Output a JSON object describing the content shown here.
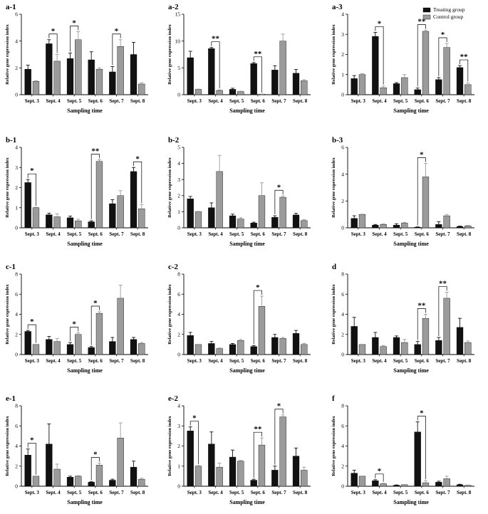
{
  "chart_data": [
    {
      "type": "bar",
      "title": "a-1",
      "ylim": [
        0,
        6
      ],
      "yticks": [
        0,
        2,
        4,
        6
      ],
      "categories": [
        "Sept. 3",
        "Sept. 4",
        "Sept. 5",
        "Sept. 6",
        "Sept. 7",
        "Sept. 8"
      ],
      "xlabel": "Sampling time",
      "ylabel": "Relative gene expression index",
      "series": [
        {
          "name": "Treating group",
          "values": [
            1.9,
            3.8,
            2.7,
            2.6,
            1.7,
            3.0
          ],
          "errors": [
            0.3,
            0.3,
            0.4,
            0.6,
            0.4,
            0.9
          ]
        },
        {
          "name": "Control group",
          "values": [
            1.0,
            2.5,
            4.1,
            1.9,
            3.6,
            0.8
          ],
          "errors": [
            0.05,
            0.5,
            0.6,
            0.1,
            0.5,
            0.1
          ]
        }
      ],
      "significance": [
        {
          "category": "Sept. 4",
          "label": "*"
        },
        {
          "category": "Sept. 5",
          "label": "*"
        },
        {
          "category": "Sept. 7",
          "label": "*"
        }
      ]
    },
    {
      "type": "bar",
      "title": "a-2",
      "ylim": [
        0,
        15
      ],
      "yticks": [
        0,
        5,
        10,
        15
      ],
      "categories": [
        "Sept. 3",
        "Sept. 4",
        "Sept. 5",
        "Sept. 6",
        "Sept. 7",
        "Sept. 8"
      ],
      "xlabel": "Sampling time",
      "ylabel": "Relative gene expression index",
      "series": [
        {
          "name": "Treating group",
          "values": [
            6.9,
            8.6,
            1.0,
            5.8,
            4.6,
            4.0
          ],
          "errors": [
            1.2,
            0.2,
            0.2,
            0.2,
            0.8,
            0.7
          ]
        },
        {
          "name": "Control group",
          "values": [
            1.0,
            0.8,
            0.6,
            0.1,
            10.0,
            2.6
          ],
          "errors": [
            0.05,
            0.1,
            0.05,
            0.02,
            1.3,
            0.2
          ]
        }
      ],
      "significance": [
        {
          "category": "Sept. 4",
          "label": "**"
        },
        {
          "category": "Sept. 6",
          "label": "**"
        }
      ]
    },
    {
      "type": "bar",
      "title": "a-3",
      "ylim": [
        0,
        4
      ],
      "yticks": [
        0,
        1,
        2,
        3,
        4
      ],
      "categories": [
        "Sept. 3",
        "Sept. 4",
        "Sept. 5",
        "Sept. 6",
        "Sept. 7",
        "Sept. 8"
      ],
      "xlabel": "Sampling time",
      "ylabel": "Relative gene expression index",
      "legend": {
        "position": "top-right",
        "entries": [
          "Treating group",
          "Control group"
        ]
      },
      "series": [
        {
          "name": "Treating group",
          "values": [
            0.8,
            2.9,
            0.55,
            0.25,
            0.75,
            1.35
          ],
          "errors": [
            0.15,
            0.2,
            0.05,
            0.08,
            0.1,
            0.1
          ]
        },
        {
          "name": "Control group",
          "values": [
            1.0,
            0.35,
            0.85,
            3.15,
            2.35,
            0.5
          ],
          "errors": [
            0.05,
            0.08,
            0.15,
            0.05,
            0.2,
            0.08
          ]
        }
      ],
      "significance": [
        {
          "category": "Sept. 4",
          "label": "*"
        },
        {
          "category": "Sept. 6",
          "label": "**"
        },
        {
          "category": "Sept. 7",
          "label": "*"
        },
        {
          "category": "Sept. 8",
          "label": "**"
        }
      ]
    },
    {
      "type": "bar",
      "title": "b-1",
      "ylim": [
        0,
        4
      ],
      "yticks": [
        0,
        1,
        2,
        3,
        4
      ],
      "categories": [
        "Sept. 3",
        "Sept. 4",
        "Sept. 5",
        "Sept. 6",
        "Sept. 7",
        "Sept. 8"
      ],
      "xlabel": "Sampling time",
      "ylabel": "Relative gene expression index",
      "series": [
        {
          "name": "Treating group",
          "values": [
            2.25,
            0.65,
            0.5,
            0.3,
            1.2,
            2.8
          ],
          "errors": [
            0.15,
            0.08,
            0.08,
            0.05,
            0.2,
            0.2
          ]
        },
        {
          "name": "Control group",
          "values": [
            1.0,
            0.55,
            0.35,
            3.3,
            1.6,
            0.95
          ],
          "errors": [
            0.02,
            0.15,
            0.08,
            0.08,
            0.25,
            0.2
          ]
        }
      ],
      "significance": [
        {
          "category": "Sept. 3",
          "label": "*"
        },
        {
          "category": "Sept. 6",
          "label": "**"
        },
        {
          "category": "Sept. 8",
          "label": "*"
        }
      ]
    },
    {
      "type": "bar",
      "title": "b-2",
      "ylim": [
        0,
        5
      ],
      "yticks": [
        0,
        1,
        2,
        3,
        4,
        5
      ],
      "categories": [
        "Sept. 3",
        "Sept. 4",
        "Sept. 5",
        "Sept. 6",
        "Sept. 7",
        "Sept. 8"
      ],
      "xlabel": "Sampling time",
      "ylabel": "Relative gene expression index",
      "series": [
        {
          "name": "Treating group",
          "values": [
            1.8,
            1.25,
            0.75,
            0.3,
            0.65,
            0.8
          ],
          "errors": [
            0.15,
            0.3,
            0.1,
            0.05,
            0.1,
            0.1
          ]
        },
        {
          "name": "Control group",
          "values": [
            1.0,
            3.5,
            0.55,
            2.0,
            1.9,
            0.45
          ],
          "errors": [
            0.02,
            1.0,
            0.08,
            0.8,
            0.08,
            0.05
          ]
        }
      ],
      "significance": [
        {
          "category": "Sept. 7",
          "label": "*"
        }
      ]
    },
    {
      "type": "bar",
      "title": "b-3",
      "ylim": [
        0,
        6
      ],
      "yticks": [
        0,
        2,
        4,
        6
      ],
      "categories": [
        "Sept. 3",
        "Sept. 4",
        "Sept. 5",
        "Sept. 6",
        "Sept. 7",
        "Sept. 8"
      ],
      "xlabel": "Sampling time",
      "ylabel": "Relative gene expression index",
      "series": [
        {
          "name": "Treating group",
          "values": [
            0.7,
            0.2,
            0.2,
            0.05,
            0.25,
            0.1
          ],
          "errors": [
            0.2,
            0.05,
            0.1,
            0.02,
            0.2,
            0.03
          ]
        },
        {
          "name": "Control group",
          "values": [
            1.0,
            0.25,
            0.35,
            3.8,
            0.9,
            0.15
          ],
          "errors": [
            0.02,
            0.05,
            0.05,
            1.0,
            0.1,
            0.03
          ]
        }
      ],
      "significance": [
        {
          "category": "Sept. 6",
          "label": "*"
        }
      ]
    },
    {
      "type": "bar",
      "title": "c-1",
      "ylim": [
        0,
        8
      ],
      "yticks": [
        0,
        2,
        4,
        6,
        8
      ],
      "categories": [
        "Sept. 3",
        "Sept. 4",
        "Sept. 5",
        "Sept. 6",
        "Sept. 7",
        "Sept. 8"
      ],
      "xlabel": "Sampling time",
      "ylabel": "Relative gene expression index",
      "series": [
        {
          "name": "Treating group",
          "values": [
            2.3,
            1.5,
            1.0,
            0.7,
            1.3,
            1.5
          ],
          "errors": [
            0.1,
            0.3,
            0.2,
            0.1,
            0.4,
            0.2
          ]
        },
        {
          "name": "Control group",
          "values": [
            1.0,
            1.3,
            2.0,
            4.1,
            5.6,
            1.1
          ],
          "errors": [
            0.02,
            0.3,
            0.15,
            0.15,
            1.3,
            0.1
          ]
        }
      ],
      "significance": [
        {
          "category": "Sept. 3",
          "label": "*"
        },
        {
          "category": "Sept. 5",
          "label": "*"
        },
        {
          "category": "Sept. 6",
          "label": "*"
        }
      ]
    },
    {
      "type": "bar",
      "title": "c-2",
      "ylim": [
        0,
        8
      ],
      "yticks": [
        0,
        2,
        4,
        6,
        8
      ],
      "categories": [
        "Sept. 3",
        "Sept. 4",
        "Sept. 5",
        "Sept. 6",
        "Sept. 7",
        "Sept. 8"
      ],
      "xlabel": "Sampling time",
      "ylabel": "Relative gene expression index",
      "series": [
        {
          "name": "Treating group",
          "values": [
            1.9,
            1.1,
            1.0,
            0.8,
            1.7,
            2.1
          ],
          "errors": [
            0.3,
            0.2,
            0.1,
            0.1,
            0.3,
            0.3
          ]
        },
        {
          "name": "Control group",
          "values": [
            1.0,
            0.6,
            1.4,
            4.8,
            1.6,
            1.0
          ],
          "errors": [
            0.02,
            0.05,
            0.1,
            1.0,
            0.1,
            0.1
          ]
        }
      ],
      "significance": [
        {
          "category": "Sept. 6",
          "label": "*"
        }
      ]
    },
    {
      "type": "bar",
      "title": "d",
      "ylim": [
        0,
        8
      ],
      "yticks": [
        0,
        2,
        4,
        6,
        8
      ],
      "categories": [
        "Sept. 3",
        "Sept. 4",
        "Sept. 5",
        "Sept. 6",
        "Sept. 7",
        "Sept. 8"
      ],
      "xlabel": "Sampling time",
      "ylabel": "Relative gene expression index",
      "series": [
        {
          "name": "Treating group",
          "values": [
            2.8,
            1.7,
            1.7,
            1.0,
            1.4,
            2.7
          ],
          "errors": [
            0.9,
            0.5,
            0.15,
            0.3,
            0.3,
            0.9
          ]
        },
        {
          "name": "Control group",
          "values": [
            1.0,
            0.8,
            1.2,
            3.6,
            5.6,
            1.2
          ],
          "errors": [
            0.02,
            0.1,
            0.3,
            0.4,
            0.6,
            0.15
          ]
        }
      ],
      "significance": [
        {
          "category": "Sept. 6",
          "label": "**"
        },
        {
          "category": "Sept. 7",
          "label": "**"
        }
      ]
    },
    {
      "type": "bar",
      "title": "e-1",
      "ylim": [
        0,
        8
      ],
      "yticks": [
        0,
        2,
        4,
        6,
        8
      ],
      "categories": [
        "Sept. 3",
        "Sept. 4",
        "Sept. 5",
        "Sept. 6",
        "Sept. 7",
        "Sept. 8"
      ],
      "xlabel": "Sampling time",
      "ylabel": "Relative gene expression index",
      "series": [
        {
          "name": "Treating group",
          "values": [
            3.1,
            4.2,
            0.9,
            0.4,
            0.6,
            1.9
          ],
          "errors": [
            0.6,
            2.0,
            0.1,
            0.05,
            0.1,
            0.6
          ]
        },
        {
          "name": "Control group",
          "values": [
            1.0,
            1.7,
            1.0,
            2.1,
            4.8,
            0.7
          ],
          "errors": [
            0.02,
            0.5,
            0.05,
            0.2,
            1.5,
            0.1
          ]
        }
      ],
      "significance": [
        {
          "category": "Sept. 3",
          "label": "*"
        },
        {
          "category": "Sept. 6",
          "label": "*"
        }
      ]
    },
    {
      "type": "bar",
      "title": "e-2",
      "ylim": [
        0,
        4
      ],
      "yticks": [
        0,
        1,
        2,
        3,
        4
      ],
      "categories": [
        "Sept. 3",
        "Sept. 4",
        "Sept. 5",
        "Sept. 6",
        "Sept. 7",
        "Sept. 8"
      ],
      "xlabel": "Sampling time",
      "ylabel": "Relative gene expression index",
      "series": [
        {
          "name": "Treating group",
          "values": [
            2.75,
            2.1,
            1.45,
            0.3,
            0.8,
            1.5
          ],
          "errors": [
            0.2,
            0.6,
            0.35,
            0.05,
            0.2,
            0.4
          ]
        },
        {
          "name": "Control group",
          "values": [
            1.0,
            0.95,
            1.25,
            2.05,
            3.45,
            0.8
          ],
          "errors": [
            0.02,
            0.2,
            0.03,
            0.35,
            0.1,
            0.15
          ]
        }
      ],
      "significance": [
        {
          "category": "Sept. 3",
          "label": "*"
        },
        {
          "category": "Sept. 6",
          "label": "**"
        },
        {
          "category": "Sept. 7",
          "label": "*"
        }
      ]
    },
    {
      "type": "bar",
      "title": "f",
      "ylim": [
        0,
        8
      ],
      "yticks": [
        0,
        2,
        4,
        6,
        8
      ],
      "categories": [
        "Sept. 3",
        "Sept. 4",
        "Sept. 5",
        "Sept. 6",
        "Sept. 7",
        "Sept. 8"
      ],
      "xlabel": "Sampling time",
      "ylabel": "Relative gene expression index",
      "series": [
        {
          "name": "Treating group",
          "values": [
            1.3,
            0.55,
            0.1,
            5.4,
            0.4,
            0.15
          ],
          "errors": [
            0.3,
            0.1,
            0.03,
            1.0,
            0.1,
            0.05
          ]
        },
        {
          "name": "Control group",
          "values": [
            1.0,
            0.25,
            0.15,
            0.35,
            0.75,
            0.1
          ],
          "errors": [
            0.02,
            0.05,
            0.03,
            0.2,
            0.25,
            0.02
          ]
        }
      ],
      "significance": [
        {
          "category": "Sept. 4",
          "label": "*"
        },
        {
          "category": "Sept. 6",
          "label": "*"
        }
      ]
    }
  ],
  "colors": {
    "treating": "#111111",
    "control": "#9b9b9b",
    "axis": "#000000"
  }
}
